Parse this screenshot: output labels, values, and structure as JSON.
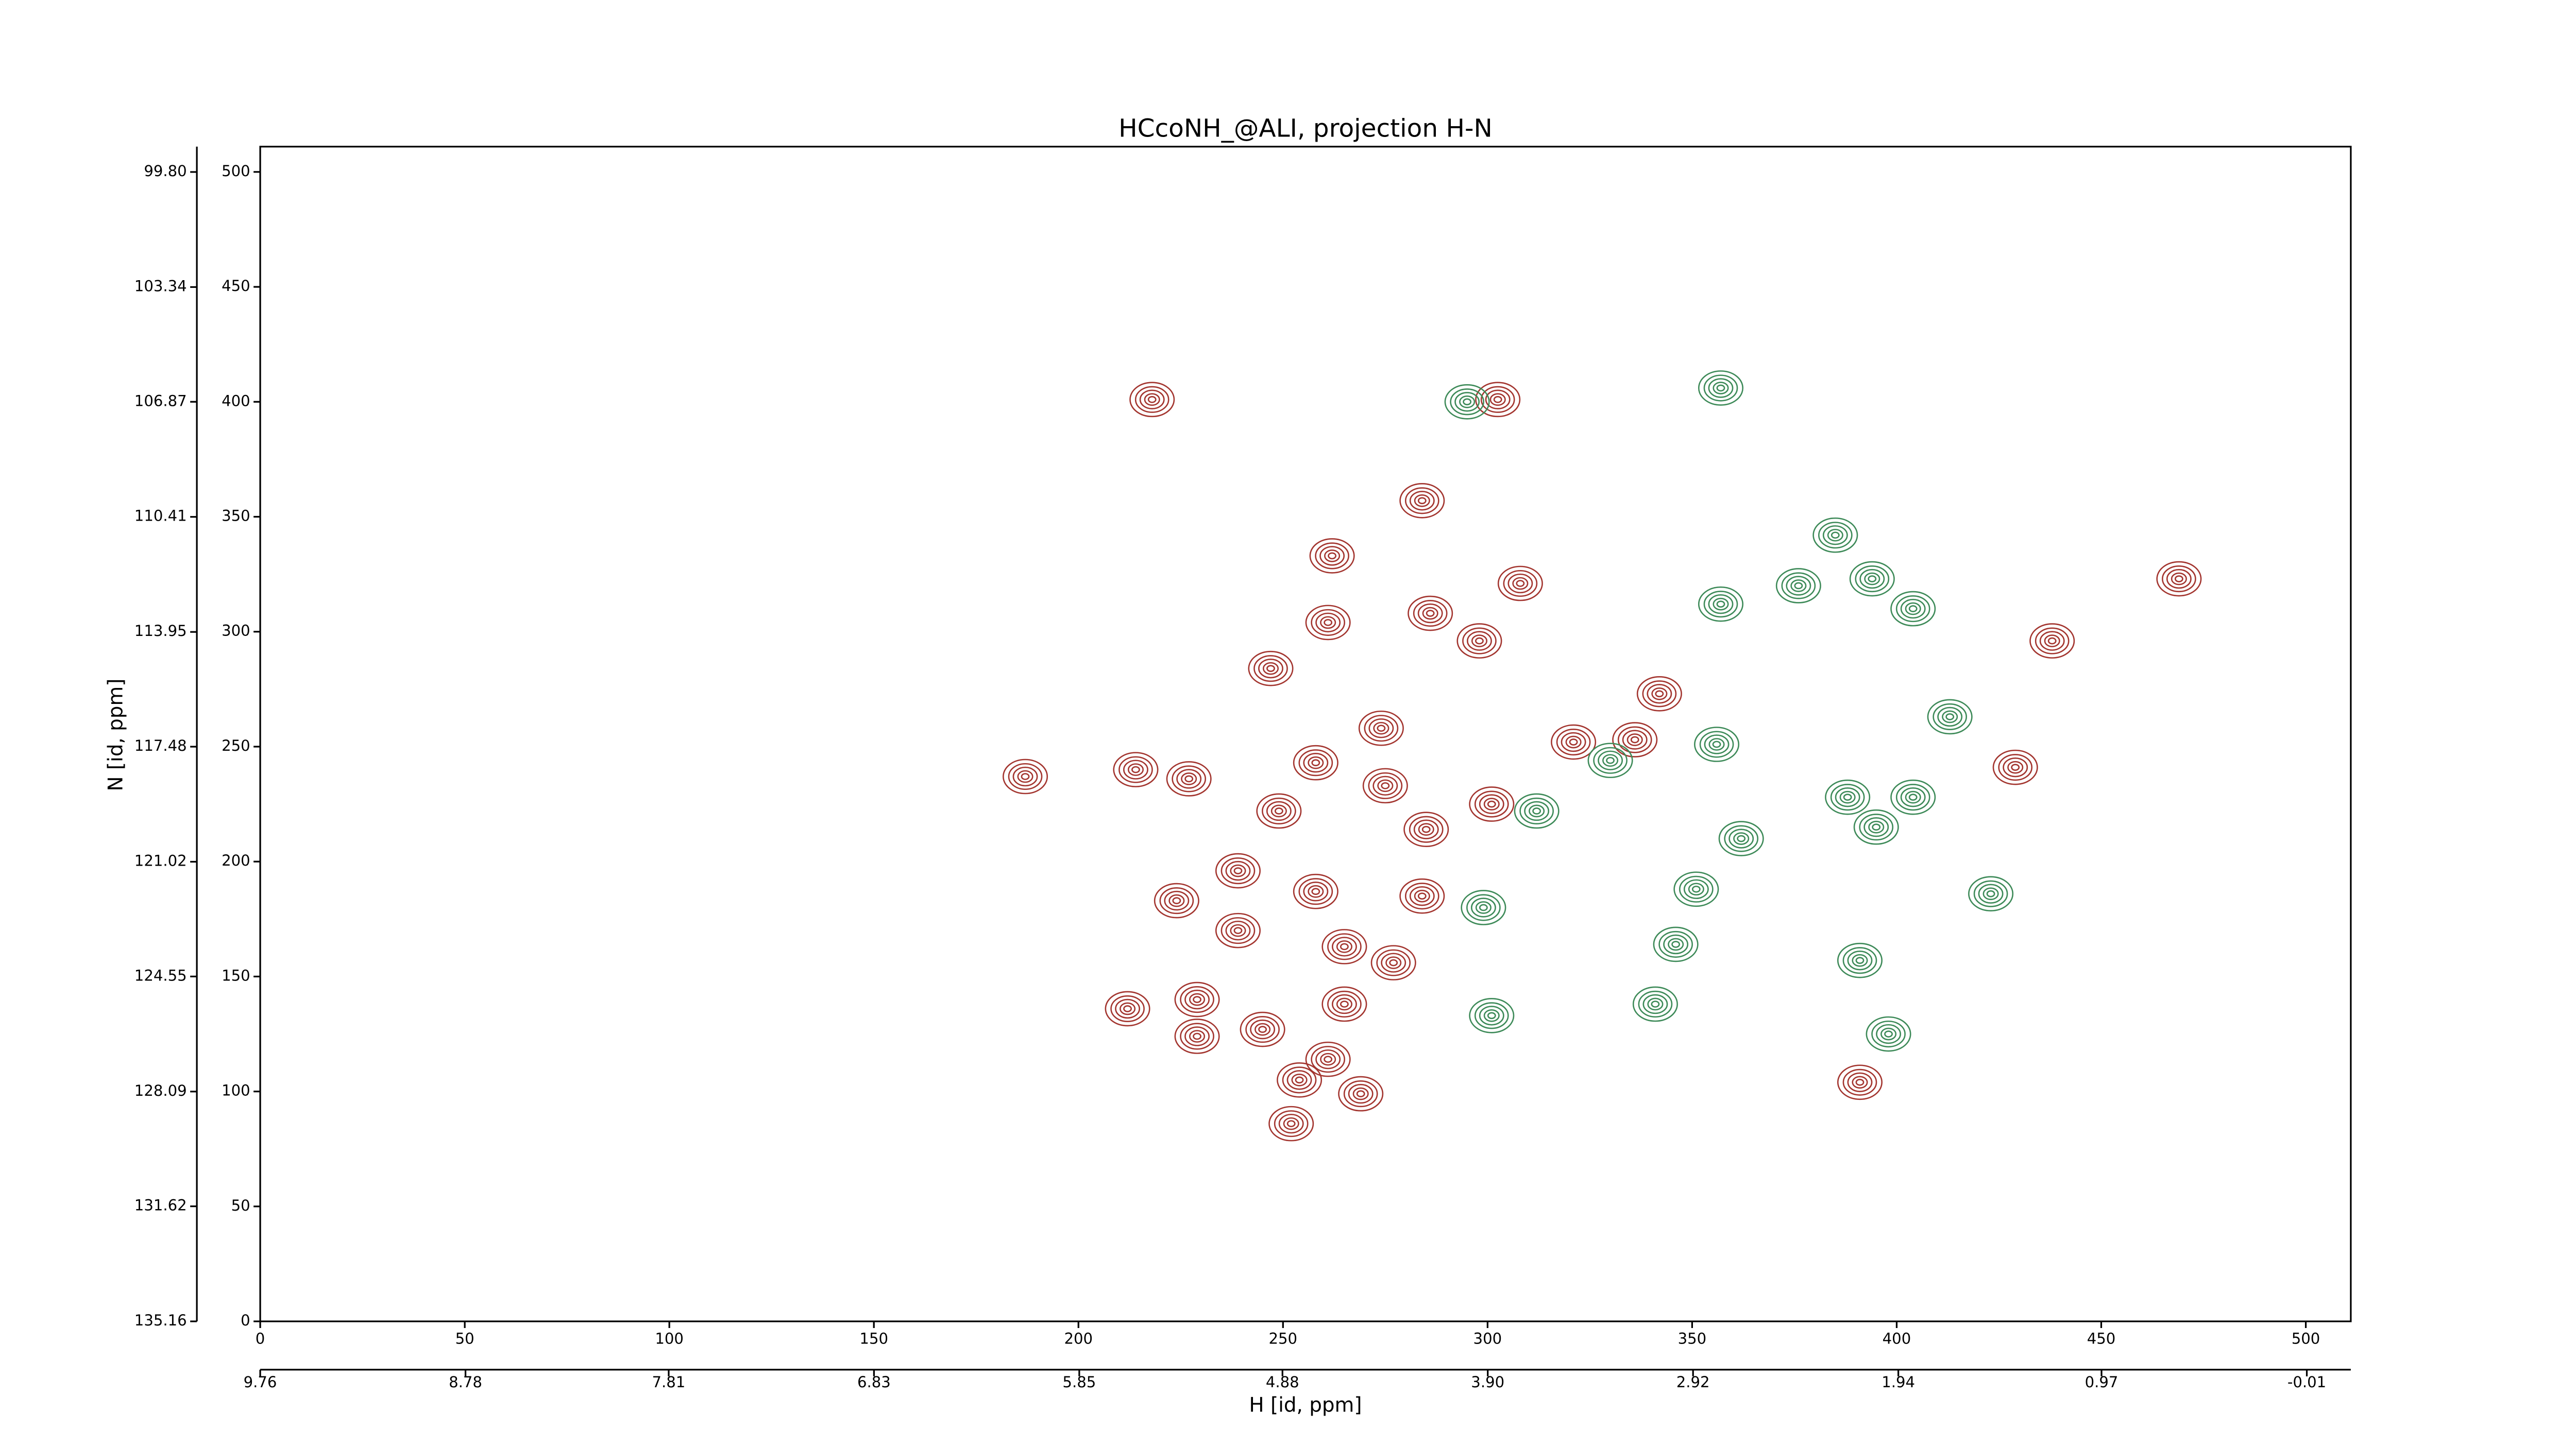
{
  "chart_data": {
    "type": "contour",
    "title": "HCcoNH_@ALI, projection H-N",
    "xlabel": "H [id, ppm]",
    "ylabel": "N [id, ppm]",
    "xlim": [
      0,
      511
    ],
    "ylim": [
      0,
      511
    ],
    "xticks": [
      0,
      50,
      100,
      150,
      200,
      250,
      300,
      350,
      400,
      450,
      500
    ],
    "yticks": [
      0,
      50,
      100,
      150,
      200,
      250,
      300,
      350,
      400,
      450,
      500
    ],
    "x2lim": [
      9.76,
      -0.22
    ],
    "x2ticks": [
      9.76,
      8.78,
      7.81,
      6.83,
      5.85,
      4.88,
      {
        "value": 3.9,
        "label": "3.90"
      },
      2.92,
      1.94,
      0.97,
      -0.01
    ],
    "y2lim": [
      135.16,
      99.02
    ],
    "y2ticks": [
      135.16,
      131.62,
      128.09,
      124.55,
      121.02,
      117.48,
      113.95,
      110.41,
      106.87,
      103.34,
      {
        "value": 99.8,
        "label": "99.80"
      }
    ],
    "series": [
      {
        "color": "#a3352f",
        "x": [
          218,
          302.5,
          262,
          284,
          247,
          261,
          286,
          298,
          308,
          187,
          227,
          214,
          274,
          258,
          275,
          249,
          285,
          301,
          321,
          342,
          429,
          469,
          438,
          224,
          239,
          258,
          284,
          239,
          265,
          277,
          212,
          229,
          265,
          245,
          229,
          254,
          261,
          269,
          252,
          391,
          336
        ],
        "values": [
          401,
          401,
          333,
          357,
          284,
          304,
          308,
          296,
          321,
          237,
          236,
          240,
          258,
          243,
          233,
          222,
          214,
          225,
          252,
          273,
          241,
          323,
          296,
          183,
          196,
          187,
          185,
          170,
          163,
          156,
          136,
          140,
          138,
          127,
          124,
          105,
          114,
          99,
          86,
          104,
          253
        ]
      },
      {
        "color": "#3d8a58",
        "x": [
          356,
          376,
          385,
          357,
          394,
          404,
          299,
          312,
          351,
          346,
          341,
          391,
          423,
          413,
          388,
          404,
          395,
          362,
          330,
          295,
          357,
          398,
          301
        ],
        "values": [
          251,
          320,
          342,
          312,
          323,
          310,
          180,
          222,
          188,
          164,
          138,
          157,
          186,
          263,
          228,
          228,
          215,
          210,
          244,
          400,
          406,
          125,
          133
        ]
      }
    ]
  }
}
